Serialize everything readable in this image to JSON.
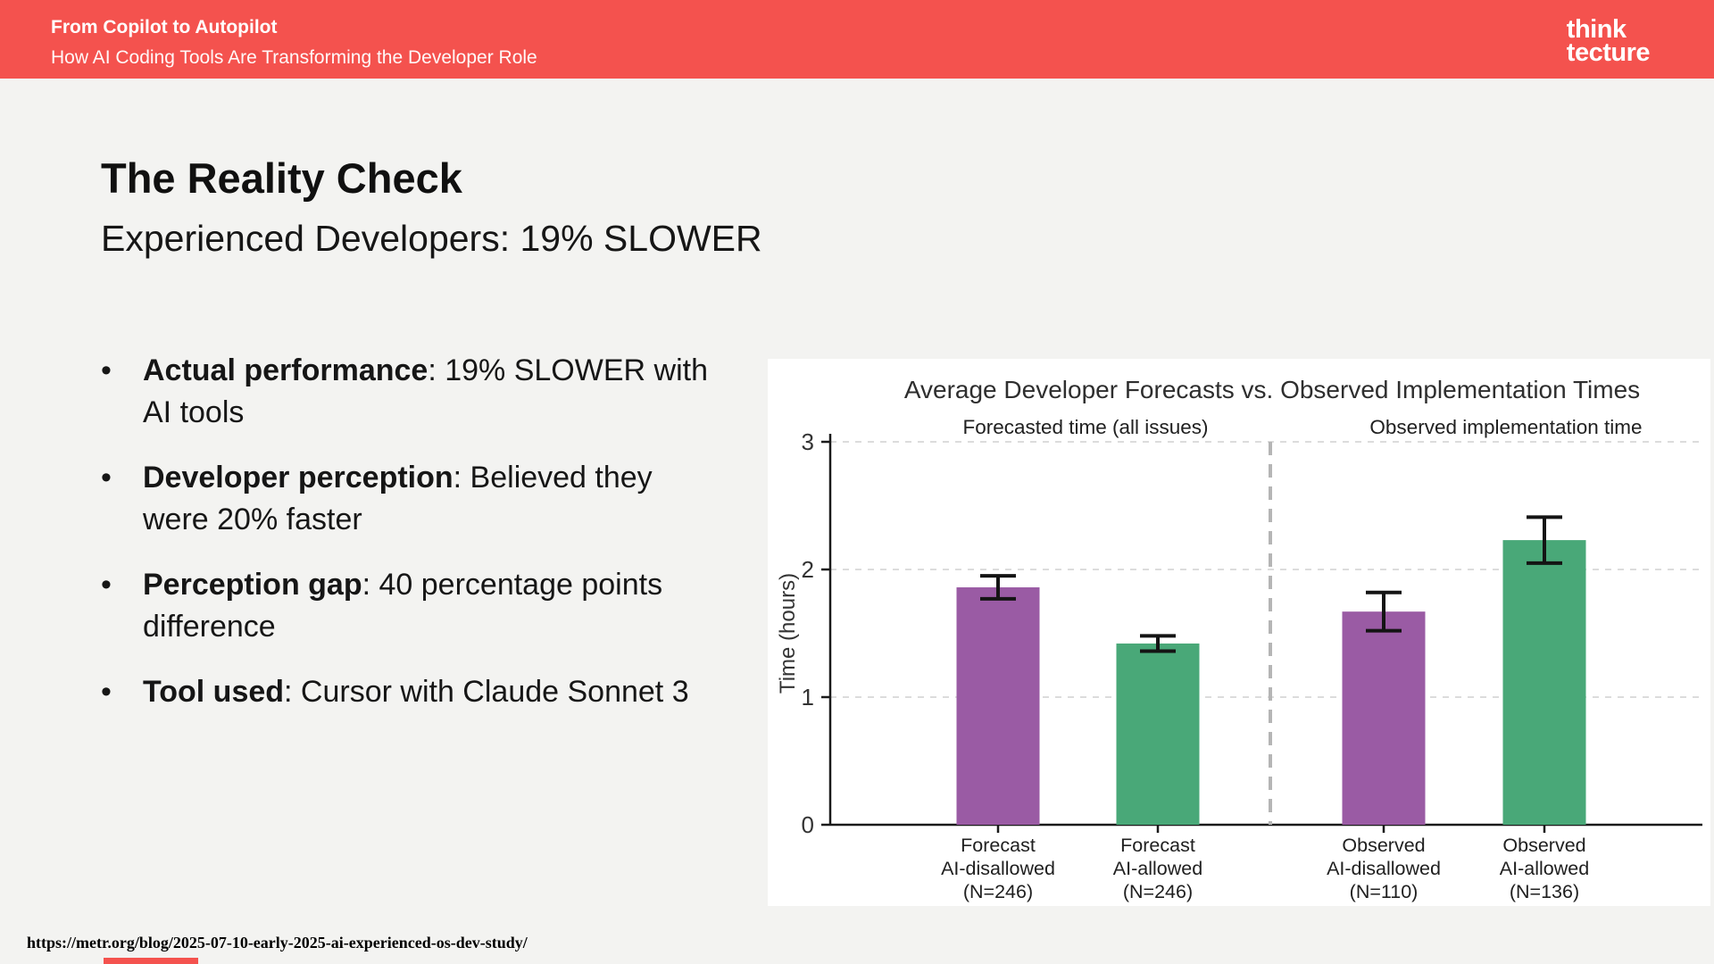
{
  "header": {
    "title": "From Copilot to Autopilot",
    "subtitle": "How AI Coding Tools Are Transforming the Developer Role",
    "logo_line1": "think",
    "logo_line2": "tecture",
    "bg_color": "#F4524E"
  },
  "slide": {
    "title": "The Reality Check",
    "subtitle": "Experienced Developers: 19% SLOWER",
    "bullets": [
      {
        "bold": "Actual performance",
        "rest": ": 19% SLOWER with",
        "line2": "AI tools"
      },
      {
        "bold": "Developer perception",
        "rest": ": Believed they",
        "line2": "were 20% faster"
      },
      {
        "bold": "Perception gap",
        "rest": ": 40 percentage points",
        "line2": "difference"
      },
      {
        "bold": "Tool used",
        "rest": ": Cursor with Claude Sonnet 3",
        "line2": ""
      }
    ]
  },
  "footer": {
    "url": "https://metr.org/blog/2025-07-10-early-2025-ai-experienced-os-dev-study/"
  },
  "colors": {
    "accent_red": "#F4524E",
    "bar_purple": "#9A5BA4",
    "bar_green": "#49A878",
    "slide_bg": "#F3F3F1",
    "chart_bg": "#FFFFFF"
  },
  "chart_data": {
    "type": "bar",
    "title": "Average Developer Forecasts vs. Observed Implementation Times",
    "group_headers": [
      "Forecasted time (all issues)",
      "Observed implementation time"
    ],
    "ylabel": "Time (hours)",
    "ylim": [
      0,
      3
    ],
    "yticks": [
      0,
      1,
      2,
      3
    ],
    "grid": "horizontal dashed lines at 1, 2, 3; dashed vertical divider between groups",
    "legend_position": "none",
    "categories": [
      [
        "Forecast",
        "AI-disallowed",
        "(N=246)"
      ],
      [
        "Forecast",
        "AI-allowed",
        "(N=246)"
      ],
      [
        "Observed",
        "AI-disallowed",
        "(N=110)"
      ],
      [
        "Observed",
        "AI-allowed",
        "(N=136)"
      ]
    ],
    "values": [
      1.86,
      1.42,
      1.67,
      2.23
    ],
    "errors": [
      0.09,
      0.06,
      0.15,
      0.18
    ],
    "bar_colors": [
      "#9A5BA4",
      "#49A878",
      "#9A5BA4",
      "#49A878"
    ],
    "divider_after_index": 1
  }
}
